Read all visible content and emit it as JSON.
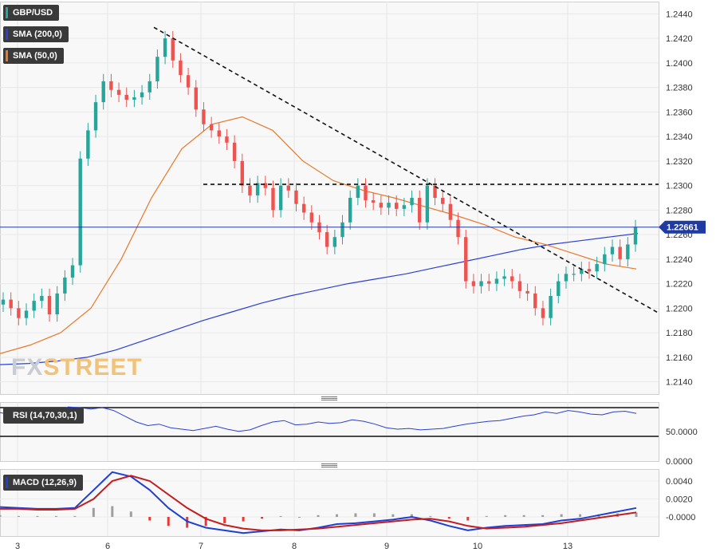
{
  "chart_data": [
    {
      "type": "candlestick",
      "title": "GBP/USD",
      "indicators": [
        {
          "name": "SMA (200,0)",
          "color": "#2b3fd6"
        },
        {
          "name": "SMA (50,0)",
          "color": "#e8792b"
        }
      ],
      "current_price": "1.22661",
      "ylim": [
        1.213,
        1.245
      ],
      "y_ticks": [
        "1.2440",
        "1.2420",
        "1.2400",
        "1.2380",
        "1.2360",
        "1.2340",
        "1.2320",
        "1.2300",
        "1.2280",
        "1.2260",
        "1.2240",
        "1.2220",
        "1.2200",
        "1.2180",
        "1.2160",
        "1.2140"
      ],
      "x_ticks": [
        "3",
        "6",
        "7",
        "8",
        "9",
        "10",
        "13"
      ],
      "grid": true,
      "key_levels": [
        {
          "kind": "horizontal",
          "style": "dashed",
          "value": 1.2301
        },
        {
          "kind": "trendline",
          "style": "dashed",
          "from": {
            "day": "6",
            "value": 1.2429
          },
          "to": {
            "day": "13",
            "value": 1.22
          }
        }
      ],
      "price_series": [
        1.2207,
        1.22,
        1.2192,
        1.2198,
        1.2206,
        1.221,
        1.2195,
        1.2212,
        1.2225,
        1.2235,
        1.2322,
        1.2345,
        1.2368,
        1.2385,
        1.2378,
        1.2374,
        1.237,
        1.2372,
        1.2376,
        1.2385,
        1.2405,
        1.242,
        1.2402,
        1.239,
        1.238,
        1.2362,
        1.235,
        1.2345,
        1.234,
        1.2335,
        1.232,
        1.23,
        1.2292,
        1.2302,
        1.2298,
        1.228,
        1.23,
        1.2296,
        1.2285,
        1.2278,
        1.227,
        1.2262,
        1.225,
        1.2258,
        1.227,
        1.229,
        1.23,
        1.2288,
        1.2286,
        1.2282,
        1.2286,
        1.2281,
        1.2284,
        1.229,
        1.227,
        1.23,
        1.229,
        1.2285,
        1.2272,
        1.2258,
        1.2222,
        1.2218,
        1.2222,
        1.222,
        1.2224,
        1.2226,
        1.2222,
        1.2214,
        1.2212,
        1.22,
        1.2192,
        1.221,
        1.2222,
        1.2228,
        1.2228,
        1.2232,
        1.223,
        1.2236,
        1.2244,
        1.225,
        1.224,
        1.2252,
        1.2266
      ],
      "sma200": [
        1.2154,
        1.2155,
        1.2157,
        1.216,
        1.2166,
        1.2174,
        1.2182,
        1.219,
        1.2197,
        1.2204,
        1.221,
        1.2215,
        1.222,
        1.2224,
        1.2228,
        1.2233,
        1.2238,
        1.2243,
        1.2248,
        1.2252,
        1.2255,
        1.2258,
        1.2261
      ],
      "sma50": [
        1.2163,
        1.217,
        1.218,
        1.22,
        1.224,
        1.229,
        1.233,
        1.235,
        1.2356,
        1.2345,
        1.232,
        1.2304,
        1.2296,
        1.229,
        1.2283,
        1.2276,
        1.2268,
        1.2258,
        1.2252,
        1.2244,
        1.2236,
        1.2232
      ],
      "series_x_range": {
        "sma200": [
          "3",
          "13"
        ],
        "sma50": [
          "3",
          "13"
        ]
      }
    },
    {
      "type": "line",
      "title": "RSI (14,70,30,1)",
      "y_ticks": [
        "50.0000",
        "0.0000"
      ],
      "reference_levels": [
        70,
        30
      ],
      "series": [
        {
          "values": [
            63,
            60,
            56,
            54,
            57,
            64,
            71,
            70,
            68,
            70,
            66,
            58,
            50,
            45,
            47,
            42,
            40,
            38,
            41,
            44,
            40,
            37,
            39,
            45,
            50,
            52,
            46,
            47,
            50,
            48,
            49,
            53,
            51,
            47,
            42,
            40,
            41,
            39,
            40,
            41,
            44,
            47,
            49,
            51,
            52,
            55,
            58,
            60,
            64,
            62,
            66,
            64,
            61,
            60,
            64,
            65,
            62
          ]
        }
      ]
    },
    {
      "type": "line",
      "title": "MACD (12,26,9)",
      "y_ticks": [
        "0.0040",
        "0.0020",
        "-0.0000"
      ],
      "series": [
        {
          "color": "#1d3fd8",
          "values": [
            0.0011,
            0.001,
            0.0009,
            0.0009,
            0.001,
            0.003,
            0.005,
            0.0045,
            0.003,
            0.001,
            -0.0005,
            -0.0012,
            -0.0015,
            -0.0018,
            -0.0016,
            -0.0014,
            -0.0015,
            -0.0012,
            -0.0008,
            -0.0007,
            -0.0005,
            -0.0003,
            0.0,
            -0.0004,
            -0.001,
            -0.0015,
            -0.0012,
            -0.001,
            -0.0009,
            -0.0008,
            -0.0004,
            -0.0002,
            0.0002,
            0.0006,
            0.001
          ]
        },
        {
          "color": "#c41d1d",
          "values": [
            0.0009,
            0.0009,
            0.0008,
            0.0008,
            0.0009,
            0.002,
            0.004,
            0.0046,
            0.004,
            0.0025,
            0.001,
            -0.0002,
            -0.0009,
            -0.0013,
            -0.0015,
            -0.0015,
            -0.0014,
            -0.0013,
            -0.0011,
            -0.0009,
            -0.0007,
            -0.0005,
            -0.0003,
            -0.0002,
            -0.0005,
            -0.001,
            -0.0013,
            -0.0012,
            -0.0011,
            -0.0009,
            -0.0007,
            -0.0004,
            -0.0001,
            0.0002,
            0.0005
          ]
        }
      ],
      "histogram": [
        0.0002,
        0.0001,
        0.0001,
        0.0001,
        0.0001,
        0.001,
        0.0012,
        0.0006,
        -0.0004,
        -0.001,
        -0.0012,
        -0.001,
        -0.0007,
        -0.0005,
        -0.0002,
        0.0001,
        0.0,
        0.0002,
        0.0003,
        0.0004,
        0.0004,
        0.0003,
        0.0003,
        0.0001,
        -0.0002,
        -0.0004,
        0.0001,
        0.0002,
        0.0002,
        0.0002,
        0.0003,
        0.0003,
        0.0003,
        0.0004,
        0.0005
      ]
    }
  ],
  "watermark": {
    "fx": "FX",
    "street": "STREET"
  },
  "colors": {
    "up": "#26a69a",
    "down": "#ef5350",
    "sma200": "#2b3fd6",
    "sma50": "#e8792b",
    "price_tag": "#1f3aa0"
  }
}
